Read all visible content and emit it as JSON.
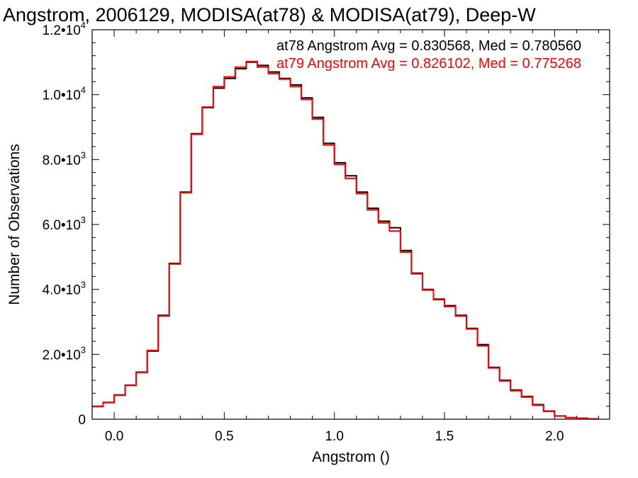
{
  "chart_data": {
    "type": "line",
    "title": "Angstrom, 2006129, MODISA(at78) & MODISA(at79), Deep-W",
    "xlabel": "Angstrom ()",
    "ylabel": "Number of Observations",
    "xlim": [
      -0.1,
      2.25
    ],
    "ylim": [
      0,
      12000
    ],
    "step": true,
    "grid": false,
    "legend_position": "top-right",
    "x_ticks": [
      {
        "value": 0.0,
        "label": "0.0"
      },
      {
        "value": 0.5,
        "label": "0.5"
      },
      {
        "value": 1.0,
        "label": "1.0"
      },
      {
        "value": 1.5,
        "label": "1.5"
      },
      {
        "value": 2.0,
        "label": "2.0"
      }
    ],
    "y_ticks": [
      {
        "value": 0,
        "mantissa": "0",
        "exp": ""
      },
      {
        "value": 2000,
        "mantissa": "2.0•10",
        "exp": "3"
      },
      {
        "value": 4000,
        "mantissa": "4.0•10",
        "exp": "3"
      },
      {
        "value": 6000,
        "mantissa": "6.0•10",
        "exp": "3"
      },
      {
        "value": 8000,
        "mantissa": "8.0•10",
        "exp": "3"
      },
      {
        "value": 10000,
        "mantissa": "1.0•10",
        "exp": "4"
      },
      {
        "value": 12000,
        "mantissa": "1.2•10",
        "exp": "4"
      }
    ],
    "annotations": [
      {
        "text": "at78 Angstrom Avg = 0.830568, Med = 0.780560",
        "color": "#000000"
      },
      {
        "text": "at79 Angstrom Avg = 0.826102, Med = 0.775268",
        "color": "#ff0000"
      }
    ],
    "x": [
      -0.1,
      -0.05,
      0.0,
      0.05,
      0.1,
      0.15,
      0.2,
      0.25,
      0.3,
      0.35,
      0.4,
      0.45,
      0.5,
      0.55,
      0.6,
      0.65,
      0.7,
      0.75,
      0.8,
      0.85,
      0.9,
      0.95,
      1.0,
      1.05,
      1.1,
      1.15,
      1.2,
      1.25,
      1.3,
      1.35,
      1.4,
      1.45,
      1.5,
      1.55,
      1.6,
      1.65,
      1.7,
      1.75,
      1.8,
      1.85,
      1.9,
      1.95,
      2.0,
      2.05,
      2.1,
      2.15
    ],
    "series": [
      {
        "name": "at78",
        "color": "#000000",
        "values": [
          400,
          520,
          750,
          1050,
          1450,
          2100,
          3200,
          4800,
          7000,
          8800,
          9600,
          10200,
          10500,
          10800,
          11000,
          10900,
          10700,
          10500,
          10300,
          9900,
          9300,
          8500,
          7900,
          7500,
          7000,
          6500,
          6100,
          5900,
          5200,
          4500,
          4000,
          3700,
          3500,
          3200,
          2800,
          2300,
          1600,
          1200,
          900,
          700,
          450,
          250,
          100,
          50,
          30,
          10
        ]
      },
      {
        "name": "at79",
        "color": "#ff0000",
        "values": [
          390,
          510,
          740,
          1040,
          1440,
          2120,
          3180,
          4780,
          6980,
          8780,
          9620,
          10250,
          10550,
          10850,
          11020,
          10850,
          10650,
          10480,
          10250,
          9850,
          9250,
          8450,
          7850,
          7420,
          6950,
          6450,
          6050,
          5800,
          5150,
          4480,
          3980,
          3680,
          3470,
          3180,
          2780,
          2260,
          1580,
          1180,
          880,
          680,
          430,
          240,
          95,
          45,
          25,
          8
        ]
      }
    ]
  }
}
